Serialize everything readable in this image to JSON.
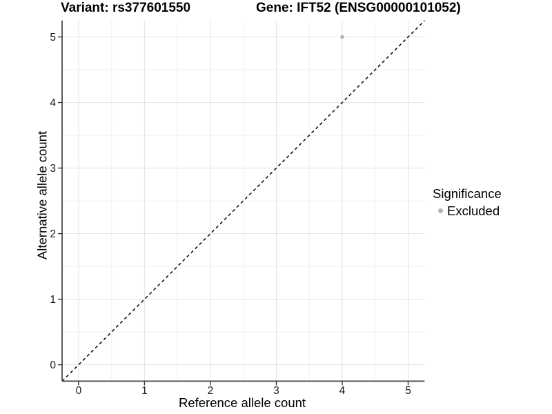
{
  "chart_data": {
    "type": "scatter",
    "titles": {
      "left": "Variant: rs377601550",
      "right": "Gene: IFT52 (ENSG00000101052)"
    },
    "xlabel": "Reference allele count",
    "ylabel": "Alternative allele count",
    "xlim": [
      -0.25,
      5.25
    ],
    "ylim": [
      -0.25,
      5.25
    ],
    "x_ticks": [
      0,
      1,
      2,
      3,
      4,
      5
    ],
    "y_ticks": [
      0,
      1,
      2,
      3,
      4,
      5
    ],
    "x_minor": [
      0.5,
      1.5,
      2.5,
      3.5,
      4.5
    ],
    "y_minor": [
      0.5,
      1.5,
      2.5,
      3.5,
      4.5
    ],
    "grid": "major+minor",
    "legend": {
      "position": "right",
      "title": "Significance",
      "items": [
        {
          "label": "Excluded",
          "color": "#b3b3b3"
        }
      ]
    },
    "series": [
      {
        "name": "Excluded",
        "color": "#b3b3b3",
        "marker_radius": 2.8,
        "points": [
          {
            "x": 4,
            "y": 5
          }
        ]
      }
    ],
    "reference_line": {
      "slope": 1,
      "intercept": 0,
      "style": "dashed",
      "color": "#000000"
    }
  },
  "colors": {
    "background": "#ffffff",
    "grid_major": "#e3e3e3",
    "grid_minor": "#f1f1f1",
    "axis_line": "#404040",
    "tick_mark": "#333333",
    "tick_label": "#1a1a1a",
    "text": "#000000"
  }
}
